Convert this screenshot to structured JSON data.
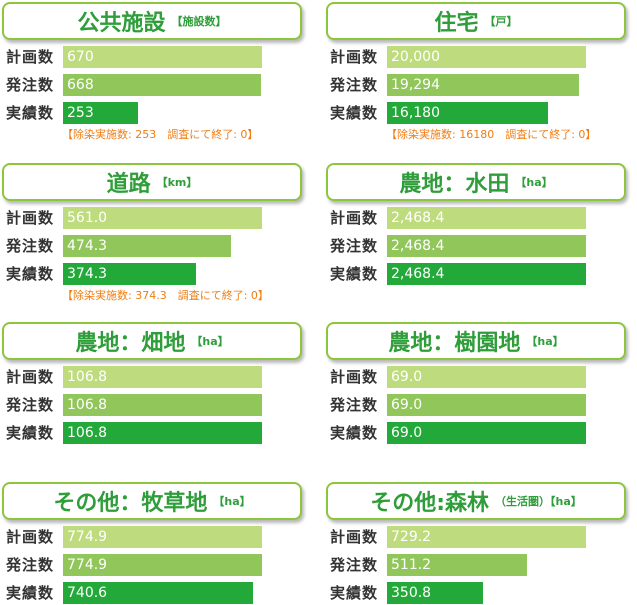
{
  "colors": {
    "plan": "#bedc7e",
    "order": "#91c65a",
    "actual": "#23a83a"
  },
  "row_labels": {
    "plan": "計画数",
    "order": "発注数",
    "actual": "実績数"
  },
  "chart_data": [
    {
      "type": "bar",
      "title": "公共施設",
      "unit": "【施設数】",
      "categories": [
        "計画数",
        "発注数",
        "実績数"
      ],
      "values": [
        670,
        668,
        253
      ],
      "value_labels": [
        "670",
        "668",
        "253"
      ],
      "ylim": [
        0,
        670
      ],
      "note": "【除染実施数: 253　調査にて終了: 0】"
    },
    {
      "type": "bar",
      "title": "住宅",
      "unit": "【戸】",
      "categories": [
        "計画数",
        "発注数",
        "実績数"
      ],
      "values": [
        20000,
        19294,
        16180
      ],
      "value_labels": [
        "20,000",
        "19,294",
        "16,180"
      ],
      "ylim": [
        0,
        20000
      ],
      "note": "【除染実施数: 16180　調査にて終了: 0】"
    },
    {
      "type": "bar",
      "title": "道路",
      "unit": "【km】",
      "categories": [
        "計画数",
        "発注数",
        "実績数"
      ],
      "values": [
        561.0,
        474.3,
        374.3
      ],
      "value_labels": [
        "561.0",
        "474.3",
        "374.3"
      ],
      "ylim": [
        0,
        561.0
      ],
      "note": "【除染実施数: 374.3　調査にて終了: 0】"
    },
    {
      "type": "bar",
      "title": "農地：水田",
      "unit": "【ha】",
      "categories": [
        "計画数",
        "発注数",
        "実績数"
      ],
      "values": [
        2468.4,
        2468.4,
        2468.4
      ],
      "value_labels": [
        "2,468.4",
        "2,468.4",
        "2,468.4"
      ],
      "ylim": [
        0,
        2468.4
      ]
    },
    {
      "type": "bar",
      "title": "農地：畑地",
      "unit": "【ha】",
      "categories": [
        "計画数",
        "発注数",
        "実績数"
      ],
      "values": [
        106.8,
        106.8,
        106.8
      ],
      "value_labels": [
        "106.8",
        "106.8",
        "106.8"
      ],
      "ylim": [
        0,
        106.8
      ]
    },
    {
      "type": "bar",
      "title": "農地：樹園地",
      "unit": "【ha】",
      "categories": [
        "計画数",
        "発注数",
        "実績数"
      ],
      "values": [
        69.0,
        69.0,
        69.0
      ],
      "value_labels": [
        "69.0",
        "69.0",
        "69.0"
      ],
      "ylim": [
        0,
        69.0
      ]
    },
    {
      "type": "bar",
      "title": "その他：牧草地",
      "unit": "【ha】",
      "categories": [
        "計画数",
        "発注数",
        "実績数"
      ],
      "values": [
        774.9,
        774.9,
        740.6
      ],
      "value_labels": [
        "774.9",
        "774.9",
        "740.6"
      ],
      "ylim": [
        0,
        774.9
      ]
    },
    {
      "type": "bar",
      "title": "その他:森林",
      "unit": "（生活圏）【ha】",
      "categories": [
        "計画数",
        "発注数",
        "実績数"
      ],
      "values": [
        729.2,
        511.2,
        350.8
      ],
      "value_labels": [
        "729.2",
        "511.2",
        "350.8"
      ],
      "ylim": [
        0,
        729.2
      ]
    }
  ]
}
